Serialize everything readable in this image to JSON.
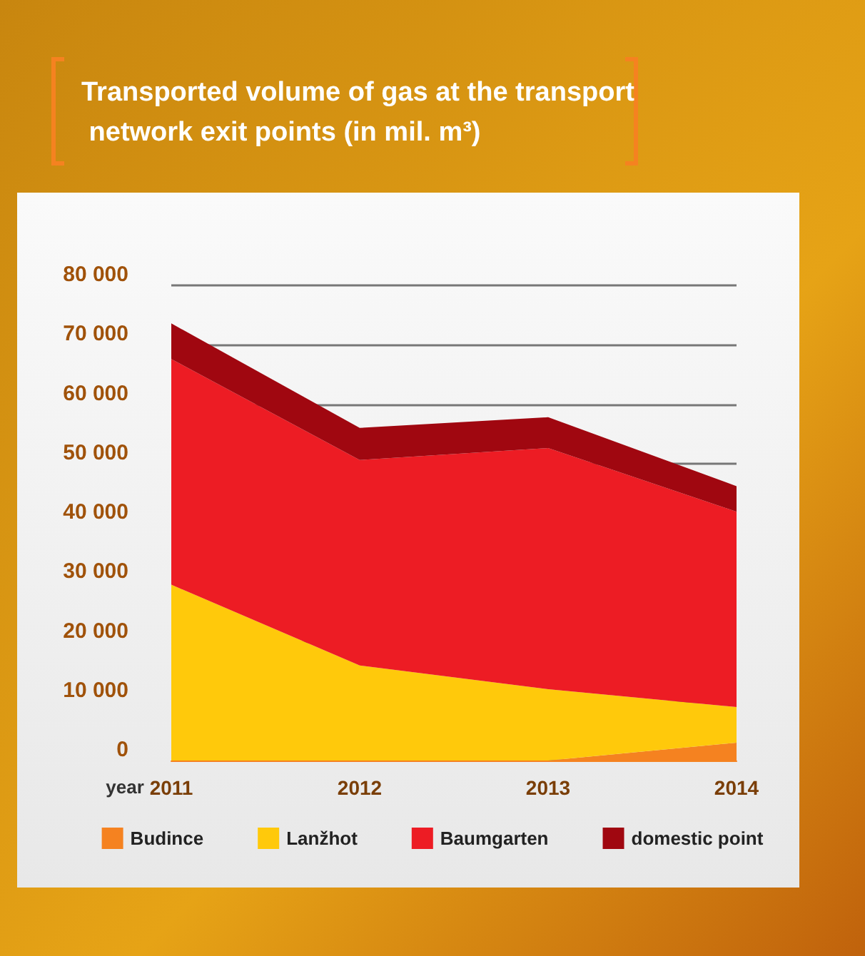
{
  "chart_data": {
    "type": "area",
    "title": "Transported volume of gas at the transport network exit points (in mil. m³)",
    "xlabel": "year",
    "categories": [
      "2011",
      "2012",
      "2013",
      "2014"
    ],
    "stacked": true,
    "series": [
      {
        "name": "Budince",
        "color": "#f58220",
        "values": [
          0,
          0,
          0,
          3000
        ]
      },
      {
        "name": "Lanžhot",
        "color": "#ffc90b",
        "values": [
          29600,
          16000,
          12000,
          6000
        ]
      },
      {
        "name": "Baumgarten",
        "color": "#ed1c24",
        "values": [
          38000,
          34600,
          40600,
          32900
        ]
      },
      {
        "name": "domestic point",
        "color": "#a00710",
        "values": [
          6000,
          5400,
          5200,
          4300
        ]
      }
    ],
    "ylim": [
      0,
      80000
    ],
    "yticks": [
      0,
      10000,
      20000,
      30000,
      40000,
      50000,
      60000,
      70000,
      80000
    ],
    "grid": "y",
    "legend": "bottom"
  }
}
